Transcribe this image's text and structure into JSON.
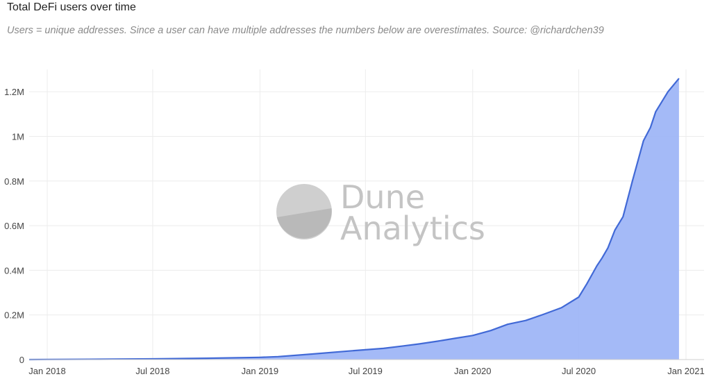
{
  "chart_data": {
    "type": "area",
    "title": "Total DeFi users over time",
    "subtitle": "Users = unique addresses. Since a user can have multiple addresses the numbers below are overestimates. Source: @richardchen39",
    "xlabel": "",
    "ylabel": "",
    "ylim": [
      0,
      1300000
    ],
    "xlim": [
      "2017-12-01",
      "2021-02-01"
    ],
    "grid": true,
    "yticks": [
      {
        "value": 0,
        "label": "0"
      },
      {
        "value": 200000,
        "label": "0.2M"
      },
      {
        "value": 400000,
        "label": "0.4M"
      },
      {
        "value": 600000,
        "label": "0.6M"
      },
      {
        "value": 800000,
        "label": "0.8M"
      },
      {
        "value": 1000000,
        "label": "1M"
      },
      {
        "value": 1200000,
        "label": "1.2M"
      }
    ],
    "xticks": [
      {
        "value": "2018-01-01",
        "label": "Jan 2018"
      },
      {
        "value": "2018-07-01",
        "label": "Jul 2018"
      },
      {
        "value": "2019-01-01",
        "label": "Jan 2019"
      },
      {
        "value": "2019-07-01",
        "label": "Jul 2019"
      },
      {
        "value": "2020-01-01",
        "label": "Jan 2020"
      },
      {
        "value": "2020-07-01",
        "label": "Jul 2020"
      },
      {
        "value": "2021-01-01",
        "label": "Jan 2021"
      }
    ],
    "series": [
      {
        "name": "Total DeFi users",
        "color": "#4169d6",
        "fill": "#9fb6f7",
        "points": [
          [
            "2017-12-01",
            0
          ],
          [
            "2018-01-01",
            500
          ],
          [
            "2018-04-01",
            1500
          ],
          [
            "2018-07-01",
            3000
          ],
          [
            "2018-10-01",
            6000
          ],
          [
            "2019-01-01",
            10000
          ],
          [
            "2019-02-01",
            13000
          ],
          [
            "2019-04-01",
            25000
          ],
          [
            "2019-06-01",
            38000
          ],
          [
            "2019-08-01",
            50000
          ],
          [
            "2019-09-01",
            60000
          ],
          [
            "2019-10-01",
            70000
          ],
          [
            "2019-11-01",
            82000
          ],
          [
            "2019-12-01",
            95000
          ],
          [
            "2020-01-01",
            108000
          ],
          [
            "2020-02-01",
            130000
          ],
          [
            "2020-03-01",
            158000
          ],
          [
            "2020-04-01",
            175000
          ],
          [
            "2020-05-01",
            202000
          ],
          [
            "2020-06-01",
            232000
          ],
          [
            "2020-07-01",
            280000
          ],
          [
            "2020-07-15",
            340000
          ],
          [
            "2020-08-01",
            420000
          ],
          [
            "2020-08-10",
            455000
          ],
          [
            "2020-08-20",
            500000
          ],
          [
            "2020-09-01",
            580000
          ],
          [
            "2020-09-15",
            640000
          ],
          [
            "2020-10-01",
            800000
          ],
          [
            "2020-10-20",
            980000
          ],
          [
            "2020-11-01",
            1040000
          ],
          [
            "2020-11-10",
            1110000
          ],
          [
            "2020-12-01",
            1200000
          ],
          [
            "2020-12-20",
            1260000
          ]
        ]
      }
    ]
  },
  "watermark": {
    "line1": "Dune",
    "line2": "Analytics"
  }
}
